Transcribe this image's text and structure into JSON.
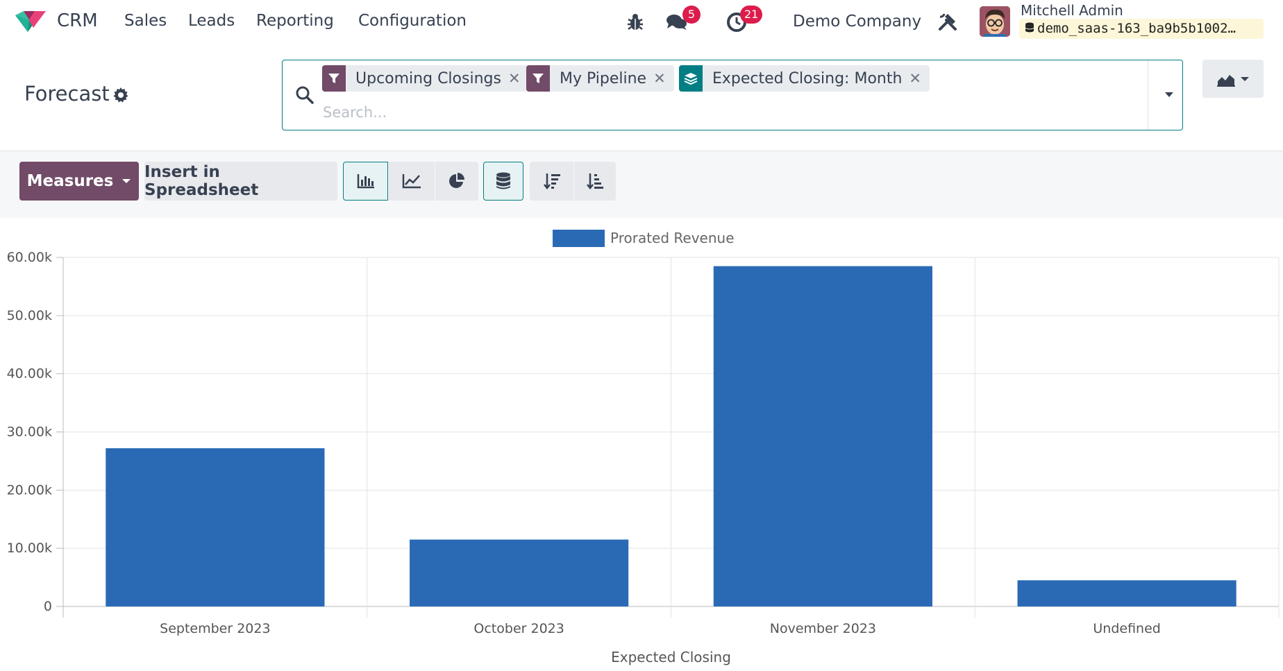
{
  "navbar": {
    "app_name": "CRM",
    "menu": [
      "Sales",
      "Leads",
      "Reporting",
      "Configuration"
    ],
    "messages_count": "5",
    "activities_count": "21",
    "company": "Demo Company",
    "user_name": "Mitchell Admin",
    "database": "demo_saas-163_ba9b5b1002…"
  },
  "control_panel": {
    "title": "Forecast",
    "facets": [
      {
        "type": "filter",
        "label": "Upcoming Closings"
      },
      {
        "type": "filter",
        "label": "My Pipeline"
      },
      {
        "type": "group",
        "label": "Expected Closing: Month"
      }
    ],
    "search_placeholder": "Search..."
  },
  "toolbar": {
    "measures_label": "Measures",
    "insert_label": "Insert in Spreadsheet",
    "active_chart": "bar",
    "stacked": true
  },
  "colors": {
    "brand": "#714b67",
    "accent": "#017e84",
    "bar": "#2a6ab5",
    "badge": "#dc1c4b"
  },
  "chart_data": {
    "type": "bar",
    "categories": [
      "September 2023",
      "October 2023",
      "November 2023",
      "Undefined"
    ],
    "series": [
      {
        "name": "Prorated Revenue",
        "values": [
          27200,
          11500,
          58500,
          4500
        ]
      }
    ],
    "xlabel": "Expected Closing",
    "ylabel": "",
    "ylim": [
      0,
      60000
    ],
    "y_ticks": [
      "0",
      "10.00k",
      "20.00k",
      "30.00k",
      "40.00k",
      "50.00k",
      "60.00k"
    ],
    "grid": true,
    "legend_position": "top"
  }
}
